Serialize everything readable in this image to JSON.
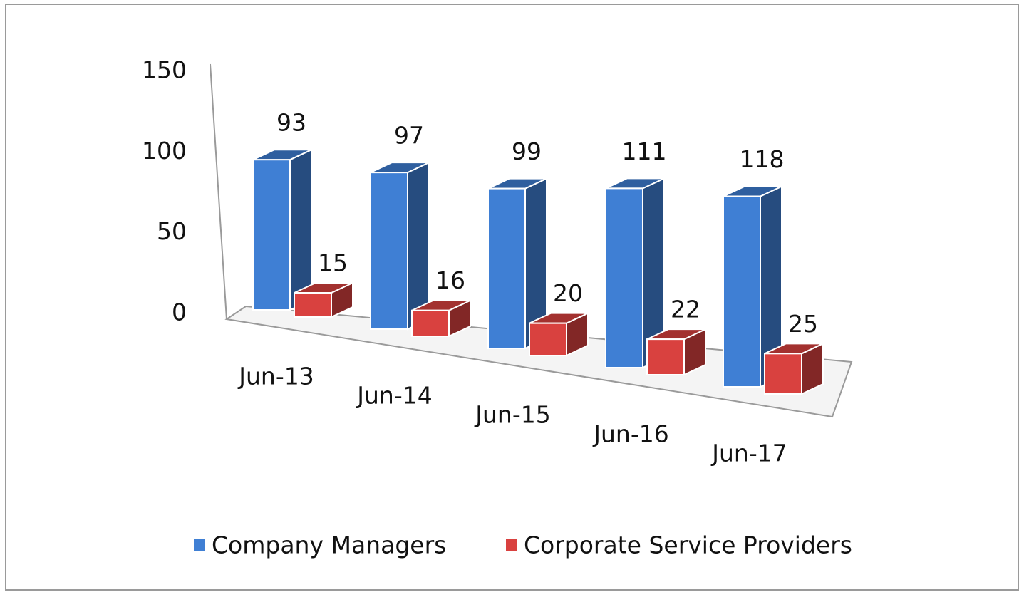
{
  "chart_data": {
    "type": "bar3d",
    "categories": [
      "Jun-13",
      "Jun-14",
      "Jun-15",
      "Jun-16",
      "Jun-17"
    ],
    "series": [
      {
        "name": "Company Managers",
        "color": "#3f7fd4",
        "values": [
          93,
          97,
          99,
          111,
          118
        ]
      },
      {
        "name": "Corporate Service Providers",
        "color": "#d9413f",
        "values": [
          15,
          16,
          20,
          22,
          25
        ]
      }
    ],
    "ylim": [
      0,
      150
    ],
    "yticks": [
      0,
      50,
      100,
      150
    ],
    "legend": "bottom"
  }
}
